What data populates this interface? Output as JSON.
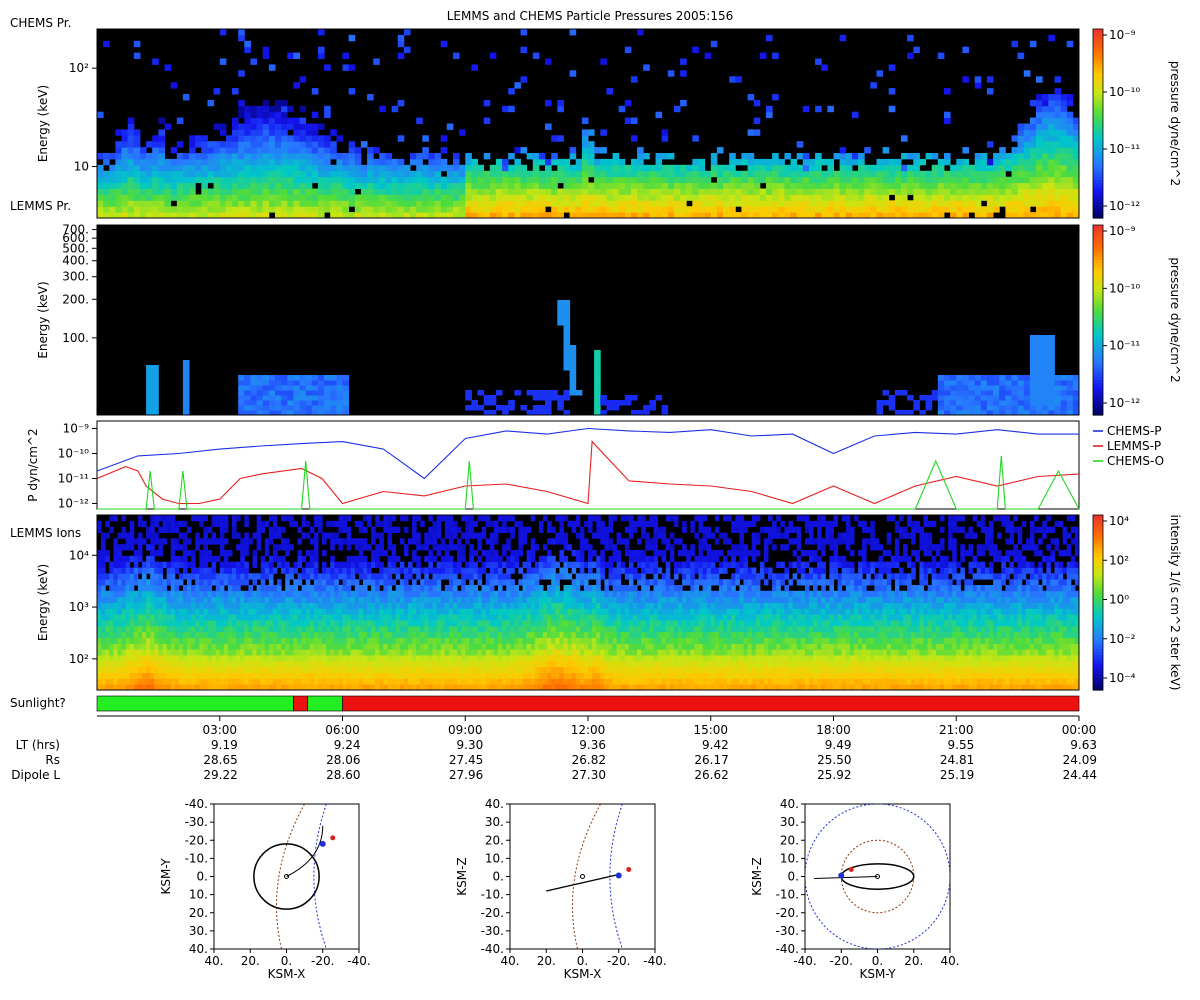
{
  "title": "LEMMS and CHEMS Particle Pressures  2005:156",
  "panel_labels": {
    "chems_pr": "CHEMS Pr.",
    "lemms_pr": "LEMMS Pr.",
    "lemms_ions": "LEMMS Ions",
    "sunlight": "Sunlight?"
  },
  "colors": {
    "chems_p": "#1f2fe6",
    "lemms_p": "#e62020",
    "chems_o": "#22d622",
    "sun_yes": "#22ee22",
    "sun_no": "#ee1111"
  },
  "chart_data": [
    {
      "type": "heatmap",
      "id": "chems_spectrogram",
      "ylabel": "Energy (keV)",
      "yscale": "log",
      "ylim": [
        3,
        250
      ],
      "yticks": [
        {
          "v": 10,
          "label": "10"
        },
        {
          "v": 100,
          "label": "10²"
        }
      ],
      "colorbar": {
        "label": "pressure dyne/cm^2",
        "scale": "log",
        "range": [
          4e-13,
          1e-09
        ],
        "ticks": [
          "10⁻⁹",
          "10⁻¹⁰",
          "10⁻¹¹",
          "10⁻¹²"
        ]
      }
    },
    {
      "type": "heatmap",
      "id": "lemms_pressure_spectrogram",
      "ylabel": "Energy (keV)",
      "yscale": "log",
      "ylim": [
        25,
        760
      ],
      "yticks": [
        {
          "v": 100,
          "label": "100."
        },
        {
          "v": 200,
          "label": "200."
        },
        {
          "v": 300,
          "label": "300."
        },
        {
          "v": 400,
          "label": "400."
        },
        {
          "v": 500,
          "label": "500."
        },
        {
          "v": 600,
          "label": "600."
        },
        {
          "v": 700,
          "label": "700."
        }
      ],
      "colorbar": {
        "label": "pressure dyne/cm^2",
        "scale": "log",
        "range": [
          4e-13,
          1e-09
        ],
        "ticks": [
          "10⁻⁹",
          "10⁻¹⁰",
          "10⁻¹¹",
          "10⁻¹²"
        ]
      }
    },
    {
      "type": "line",
      "id": "pressure_timeseries",
      "ylabel": "P dyn/cm^2",
      "yscale": "log",
      "ylim": [
        6e-13,
        2e-09
      ],
      "yticks": [
        "10⁻⁹",
        "10⁻¹⁰",
        "10⁻¹¹",
        "10⁻¹²"
      ],
      "x_unit": "hours of day 2005:156",
      "series": [
        {
          "name": "CHEMS-P",
          "x": [
            0,
            1,
            2,
            3,
            4,
            5,
            6,
            7,
            8,
            9,
            10,
            11,
            12,
            13,
            14,
            15,
            16,
            17,
            18,
            19,
            20,
            21,
            22,
            23,
            24
          ],
          "y": [
            2e-11,
            8e-11,
            1e-10,
            1.5e-10,
            2e-10,
            2.5e-10,
            3e-10,
            1.5e-10,
            1e-11,
            4e-10,
            8e-10,
            6e-10,
            1e-09,
            8e-10,
            7e-10,
            9e-10,
            5e-10,
            6e-10,
            1e-10,
            5e-10,
            7e-10,
            6e-10,
            9e-10,
            6e-10,
            6e-10
          ]
        },
        {
          "name": "LEMMS-P",
          "x": [
            0,
            0.7,
            1,
            1.2,
            1.6,
            2,
            2.5,
            3,
            3.5,
            4,
            5,
            5.5,
            6,
            7,
            8,
            9,
            10,
            11,
            12,
            12.1,
            13,
            14,
            15,
            16,
            17,
            18,
            19,
            20,
            21,
            22,
            23,
            24
          ],
          "y": [
            1e-11,
            3e-11,
            2e-11,
            5e-12,
            1.5e-12,
            1e-12,
            1e-12,
            1.5e-12,
            1e-11,
            1.5e-11,
            2.5e-11,
            1e-11,
            1e-12,
            3e-12,
            2e-12,
            5e-12,
            6e-12,
            3e-12,
            1e-12,
            3e-10,
            8e-12,
            6e-12,
            5e-12,
            3e-12,
            1e-12,
            5e-12,
            1e-12,
            5e-12,
            1.2e-11,
            5e-12,
            1.2e-11,
            1.5e-11
          ]
        },
        {
          "name": "CHEMS-O",
          "x": [
            0,
            1.2,
            1.3,
            1.4,
            2,
            2.1,
            2.2,
            3,
            5,
            5.1,
            5.2,
            6,
            9,
            9.1,
            9.2,
            10,
            12,
            14,
            16,
            18,
            19,
            20,
            20.5,
            21,
            22,
            22.1,
            22.2,
            23,
            23.5,
            24
          ],
          "y": [
            6e-13,
            6e-13,
            2e-11,
            6e-13,
            6e-13,
            2e-11,
            6e-13,
            6e-13,
            6e-13,
            5e-11,
            6e-13,
            6e-13,
            6e-13,
            5e-11,
            6e-13,
            6e-13,
            6e-13,
            6e-13,
            6e-13,
            6e-13,
            6e-13,
            6e-13,
            5e-11,
            6e-13,
            6e-13,
            8e-11,
            6e-13,
            6e-13,
            2e-11,
            6e-13
          ]
        }
      ]
    },
    {
      "type": "heatmap",
      "id": "lemms_ions_spectrogram",
      "ylabel": "Energy (keV)",
      "yscale": "log",
      "ylim": [
        25,
        60000
      ],
      "yticks": [
        {
          "v": 100,
          "label": "10²"
        },
        {
          "v": 1000,
          "label": "10³"
        },
        {
          "v": 10000,
          "label": "10⁴"
        }
      ],
      "colorbar": {
        "label": "intensity 1/(s cm^2 ster keV)",
        "scale": "log",
        "range": [
          2e-05,
          10000.0
        ],
        "ticks": [
          "10⁴",
          "10²",
          "10⁰",
          "10⁻²",
          "10⁻⁴"
        ]
      }
    },
    {
      "type": "bar",
      "id": "sunlight",
      "segments": [
        {
          "start": 0,
          "end": 4.8,
          "value": "yes"
        },
        {
          "start": 4.8,
          "end": 5.15,
          "value": "no"
        },
        {
          "start": 5.15,
          "end": 6.0,
          "value": "yes"
        },
        {
          "start": 6.0,
          "end": 24,
          "value": "no"
        }
      ]
    },
    {
      "type": "table",
      "id": "ephemeris",
      "columns": [
        "03:00",
        "06:00",
        "09:00",
        "12:00",
        "15:00",
        "18:00",
        "21:00",
        "00:00"
      ],
      "rows": [
        {
          "label": "LT (hrs)",
          "values": [
            "9.19",
            "9.24",
            "9.30",
            "9.36",
            "9.42",
            "9.49",
            "9.55",
            "9.63"
          ]
        },
        {
          "label": "Rs",
          "values": [
            "28.65",
            "28.06",
            "27.45",
            "26.82",
            "26.17",
            "25.50",
            "24.81",
            "24.09"
          ]
        },
        {
          "label": "Dipole L",
          "values": [
            "29.22",
            "28.60",
            "27.96",
            "27.30",
            "26.62",
            "25.92",
            "25.19",
            "24.44"
          ]
        }
      ]
    },
    {
      "type": "scatter",
      "id": "orbit_xy",
      "xlabel": "KSM-X",
      "ylabel": "KSM-Y",
      "xticks": [
        "40.",
        "20.",
        "0.",
        "-20.",
        "-40."
      ],
      "yticks": [
        "-40.",
        "-30.",
        "-20.",
        "-10.",
        "0.",
        "10.",
        "20.",
        "30.",
        "40."
      ],
      "xlim": [
        40,
        -40
      ],
      "ylim": [
        -40,
        40
      ]
    },
    {
      "type": "scatter",
      "id": "orbit_xz",
      "xlabel": "KSM-X",
      "ylabel": "KSM-Z",
      "xticks": [
        "40.",
        "20.",
        "0.",
        "-20.",
        "-40."
      ],
      "yticks": [
        "40.",
        "30.",
        "20.",
        "10.",
        "0.",
        "-10.",
        "-20.",
        "-30.",
        "-40."
      ],
      "xlim": [
        40,
        -40
      ],
      "ylim": [
        40,
        -40
      ]
    },
    {
      "type": "scatter",
      "id": "orbit_yz",
      "xlabel": "KSM-Y",
      "ylabel": "KSM-Z",
      "xticks": [
        "-40.",
        "-20.",
        "0.",
        "20.",
        "40."
      ],
      "yticks": [
        "40.",
        "30.",
        "20.",
        "10.",
        "0.",
        "-10.",
        "-20.",
        "-30.",
        "-40."
      ],
      "xlim": [
        -40,
        40
      ],
      "ylim": [
        40,
        -40
      ]
    }
  ]
}
